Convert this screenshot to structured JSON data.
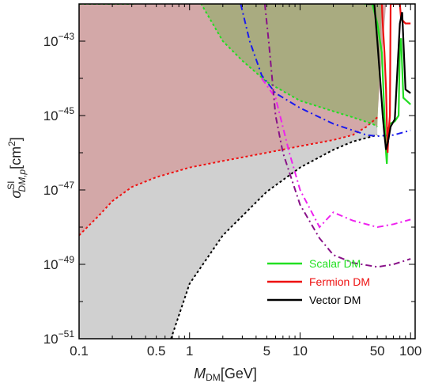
{
  "chart_data": {
    "type": "line",
    "title": "",
    "xlabel": {
      "main": "M",
      "sub": "DM",
      "unit": "[GeV]"
    },
    "ylabel": {
      "main": "σ",
      "sup": "SI",
      "sub": "DM,p",
      "unit": "[cm",
      "unit_sup": "2",
      "unit_close": "]"
    },
    "x_scale": "log",
    "y_scale": "log",
    "xlim": [
      0.1,
      110
    ],
    "ylim": [
      1e-51,
      1e-42
    ],
    "x_ticks": [
      {
        "value": 0.1,
        "label": "0.1"
      },
      {
        "value": 0.5,
        "label": "0.5"
      },
      {
        "value": 1,
        "label": "1"
      },
      {
        "value": 5,
        "label": "5"
      },
      {
        "value": 10,
        "label": "10"
      },
      {
        "value": 50,
        "label": "50"
      },
      {
        "value": 100,
        "label": "100"
      }
    ],
    "y_ticks": [
      {
        "value": 1e-43,
        "base": "10",
        "exp": "−43"
      },
      {
        "value": 1e-45,
        "base": "10",
        "exp": "−45"
      },
      {
        "value": 1e-47,
        "base": "10",
        "exp": "−47"
      },
      {
        "value": 1e-49,
        "base": "10",
        "exp": "−49"
      },
      {
        "value": 1e-51,
        "base": "10",
        "exp": "−51"
      }
    ],
    "legend_position": "bottom-right",
    "legend": [
      {
        "label": "Scalar DM",
        "color": "#22e022"
      },
      {
        "label": "Fermion DM",
        "color": "#ee1111"
      },
      {
        "label": "Vector DM",
        "color": "#000000"
      }
    ],
    "colors": {
      "neutrino_floor_fill": "#d0d0d0",
      "red_region_fill": "#d3a8a8",
      "green_region_fill": "#a9ab80",
      "neutrino_floor_line": "#000000",
      "red_dotted": "#ee1111",
      "green_dotted": "#22dd22",
      "blue_dashdot": "#1a1aee",
      "magenta_dashdot": "#ee22ee",
      "purple_dashdot": "#881188"
    },
    "series": [
      {
        "style": "dotted",
        "color_key": "neutrino_floor_line",
        "points": [
          [
            0.68,
            1e-51
          ],
          [
            1,
            3e-50
          ],
          [
            2,
            6e-49
          ],
          [
            5,
            9e-48
          ],
          [
            10,
            4e-47
          ],
          [
            20,
            1.2e-46
          ],
          [
            30,
            2e-46
          ],
          [
            50,
            3e-46
          ]
        ]
      },
      {
        "style": "dotted",
        "color_key": "red_dotted",
        "points": [
          [
            0.1,
            6e-49
          ],
          [
            0.15,
            2e-48
          ],
          [
            0.2,
            5e-48
          ],
          [
            0.3,
            1.2e-47
          ],
          [
            0.5,
            2.2e-47
          ],
          [
            1,
            4e-47
          ],
          [
            2,
            6e-47
          ],
          [
            5,
            1e-46
          ],
          [
            10,
            1.5e-46
          ],
          [
            20,
            2.2e-46
          ],
          [
            30,
            3e-46
          ],
          [
            40,
            5e-46
          ],
          [
            50,
            9e-46
          ]
        ]
      },
      {
        "style": "dotted",
        "color_key": "green_dotted",
        "points": [
          [
            0.1,
            1e-42
          ],
          [
            0.3,
            1e-42
          ],
          [
            0.5,
            1.2e-42
          ],
          [
            0.7,
            1.8e-42
          ],
          [
            1,
            3.5e-42
          ],
          [
            2,
            1e-43
          ],
          [
            3,
            3e-44
          ],
          [
            5,
            8e-45
          ],
          [
            10,
            2.5e-45
          ],
          [
            20,
            1.3e-45
          ],
          [
            30,
            9e-46
          ],
          [
            45,
            6e-46
          ],
          [
            50,
            5e-46
          ]
        ]
      },
      {
        "style": "dashdot",
        "color_key": "blue_dashdot",
        "points": [
          [
            2.9,
            1e-42
          ],
          [
            3.5,
            1e-43
          ],
          [
            4.5,
            1.2e-44
          ],
          [
            6,
            4e-45
          ],
          [
            10,
            1.6e-45
          ],
          [
            20,
            6e-46
          ],
          [
            30,
            4e-46
          ],
          [
            40,
            3e-46
          ],
          [
            50,
            2.8e-46
          ],
          [
            70,
            3e-46
          ],
          [
            100,
            4e-46
          ]
        ]
      },
      {
        "style": "dashdot",
        "color_key": "magenta_dashdot",
        "points": [
          [
            4.5,
            1e-44
          ],
          [
            6,
            3e-45
          ],
          [
            8,
            1e-46
          ],
          [
            10,
            1e-47
          ],
          [
            15,
            1e-48
          ],
          [
            20,
            2.5e-48
          ],
          [
            30,
            1.5e-48
          ],
          [
            50,
            1e-48
          ],
          [
            70,
            1.2e-48
          ],
          [
            100,
            1.6e-48
          ]
        ]
      },
      {
        "style": "dashdot",
        "color_key": "purple_dashdot",
        "points": [
          [
            4.8,
            1e-42
          ],
          [
            5.2,
            1e-43
          ],
          [
            6,
            1e-45
          ],
          [
            7,
            1e-46
          ],
          [
            8,
            3e-47
          ],
          [
            10,
            4e-48
          ],
          [
            15,
            5e-49
          ],
          [
            20,
            1.8e-49
          ],
          [
            30,
            1.1e-49
          ],
          [
            50,
            8.5e-50
          ],
          [
            70,
            1e-49
          ],
          [
            100,
            1.4e-49
          ]
        ]
      },
      {
        "name": "Scalar DM",
        "style": "solid",
        "color_key": "green_dotted",
        "points": [
          [
            38,
            1e-42
          ],
          [
            45,
            1e-42
          ],
          [
            50,
            3e-43
          ],
          [
            55,
            5e-44
          ],
          [
            58,
            1e-45
          ],
          [
            60,
            1e-46
          ],
          [
            61,
            5e-47
          ],
          [
            62.5,
            4e-46
          ],
          [
            65,
            6e-46
          ],
          [
            72,
            7e-46
          ],
          [
            78,
            1e-45
          ],
          [
            80,
            8e-44
          ],
          [
            82,
            1.2e-43
          ],
          [
            86,
            3e-45
          ],
          [
            100,
            2e-45
          ]
        ]
      },
      {
        "name": "Fermion DM",
        "style": "solid",
        "color_key": "red_dotted",
        "points": [
          [
            55,
            1e-42
          ],
          [
            56,
            3e-43
          ],
          [
            58,
            5e-44
          ],
          [
            60,
            5e-45
          ],
          [
            62,
            1e-46
          ],
          [
            63,
            3e-46
          ],
          [
            65,
            1e-45
          ],
          [
            66,
            1e-42
          ],
          [
            80,
            1e-42
          ],
          [
            82,
            4e-43
          ],
          [
            90,
            3e-43
          ],
          [
            100,
            3e-43
          ]
        ]
      },
      {
        "name": "Vector DM",
        "style": "solid",
        "color_key": "neutrino_floor_line",
        "points": [
          [
            40,
            1e-42
          ],
          [
            47,
            1e-42
          ],
          [
            50,
            1e-43
          ],
          [
            53,
            1e-44
          ],
          [
            56,
            1e-45
          ],
          [
            58,
            3e-46
          ],
          [
            60,
            1.2e-46
          ],
          [
            62.5,
            2e-46
          ],
          [
            66,
            5e-46
          ],
          [
            72,
            8e-46
          ],
          [
            80,
            3e-43
          ],
          [
            84,
            6e-43
          ],
          [
            90,
            5e-45
          ],
          [
            100,
            4e-45
          ]
        ]
      }
    ]
  }
}
